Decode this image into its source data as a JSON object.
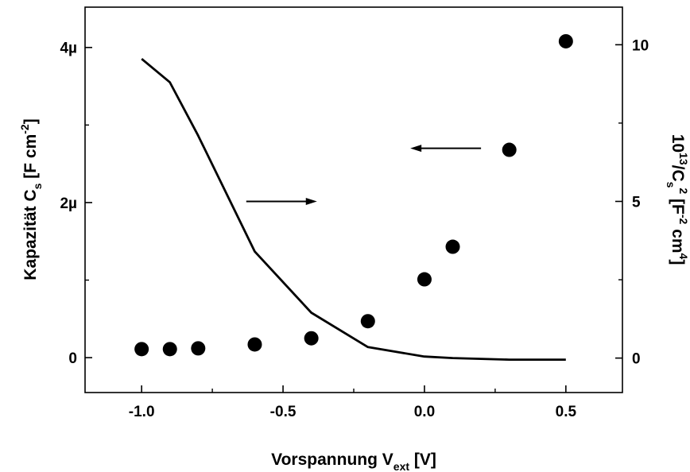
{
  "chart_data": {
    "type": "scatter",
    "x_ticks": [
      "-1.0",
      "-0.5",
      "0.0",
      "0.5"
    ],
    "x_tick_values": [
      -1.0,
      -0.5,
      0.0,
      0.5
    ],
    "xlim": [
      -1.2,
      0.7
    ],
    "y_left_ticks": [
      "0",
      "2µ",
      "4µ"
    ],
    "y_left_tick_values": [
      0,
      2e-06,
      4e-06
    ],
    "ylim_left": [
      -4.5e-07,
      4.52e-06
    ],
    "y_right_ticks": [
      "0",
      "5",
      "10"
    ],
    "y_right_tick_values": [
      0,
      5,
      10
    ],
    "ylim_right": [
      -1.1,
      11.2
    ],
    "xlabel": {
      "main": "Vorspannung V",
      "sub": "ext",
      "tail": " [V]"
    },
    "ylabel_left": {
      "main": "Kapazität C",
      "sub": "s",
      "tail": " [F cm",
      "sup": "-2",
      "end": "]"
    },
    "ylabel_right": {
      "p1": "10",
      "sup1": "13",
      "p2": "/C",
      "sub": "s",
      "sup2": "2",
      "p3": " [F",
      "sup3": "-2",
      "p4": " cm",
      "sup4": "4",
      "p5": "]"
    },
    "series": [
      {
        "axis": "left",
        "marker": "circle",
        "x": [
          -1.0,
          -0.9,
          -0.8,
          -0.6,
          -0.4,
          -0.2,
          0.0,
          0.1,
          0.3,
          0.5
        ],
        "y": [
          1.1e-07,
          1.1e-07,
          1.2e-07,
          1.7e-07,
          2.5e-07,
          4.7e-07,
          1.01e-06,
          1.43e-06,
          2.68e-06,
          4.08e-06
        ]
      },
      {
        "axis": "right",
        "marker": "line",
        "x": [
          -1.0,
          -0.9,
          -0.8,
          -0.6,
          -0.4,
          -0.2,
          0.0,
          0.1,
          0.3,
          0.5
        ],
        "y": [
          9.55,
          8.8,
          7.1,
          3.4,
          1.45,
          0.35,
          0.05,
          0.0,
          -0.05,
          -0.05
        ]
      }
    ],
    "annotations": [
      {
        "type": "arrow",
        "direction": "right",
        "points_to": "right axis",
        "x_from": -0.63,
        "x_to": -0.38,
        "y_right": 5.0
      },
      {
        "type": "arrow",
        "direction": "left",
        "points_to": "left axis",
        "x_from": 0.2,
        "x_to": -0.05,
        "y_left": 2.7e-06
      }
    ],
    "colors": {
      "markers": "#000000",
      "line": "#000000",
      "axes": "#000000"
    },
    "grid": false
  }
}
